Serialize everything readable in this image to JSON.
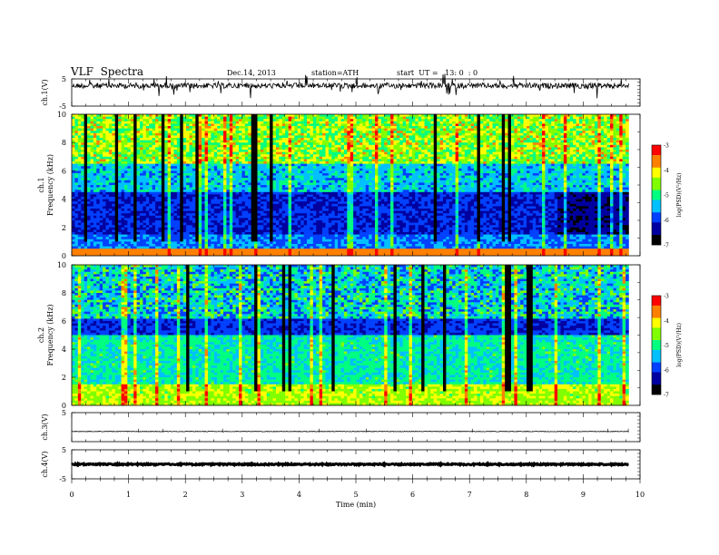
{
  "header": {
    "title": "VLF  Spectra",
    "date": "Dec.14, 2013",
    "station": "station=ATH",
    "start": "start  UT =   13: 0  : 0"
  },
  "colors": {
    "colormap": [
      "#000000",
      "#0000a0",
      "#0040ff",
      "#00c0ff",
      "#00ff80",
      "#80ff00",
      "#ffff00",
      "#ff8000",
      "#ff0000",
      "#ffffff"
    ]
  },
  "chart_data": [
    {
      "type": "line",
      "panel": "ch1",
      "ylabel": "ch.1(V)",
      "ylim": [
        -5,
        5
      ],
      "yticks": [
        "5",
        "-5"
      ],
      "xlim": [
        0,
        10
      ],
      "baseline_value": 2.5
    },
    {
      "type": "heatmap",
      "panel": "spec1",
      "ylabel_outer": "ch.1",
      "ylabel": "Frequency  (kHz)",
      "ylim": [
        0,
        10
      ],
      "yticks": [
        "0",
        "2",
        "4",
        "6",
        "8",
        "10"
      ],
      "xlim": [
        0,
        10
      ],
      "data_xmax": 9.8,
      "colorbar": {
        "label": "log(PSD)(V²/Hz)",
        "range": [
          -7,
          -3
        ],
        "ticks": [
          "-3",
          "-4",
          "-5",
          "-6",
          "-7"
        ]
      }
    },
    {
      "type": "heatmap",
      "panel": "spec2",
      "ylabel_outer": "ch.2",
      "ylabel": "Frequency  (kHz)",
      "ylim": [
        0,
        10
      ],
      "yticks": [
        "0",
        "2",
        "4",
        "6",
        "8",
        "10"
      ],
      "xlim": [
        0,
        10
      ],
      "data_xmax": 9.8,
      "colorbar": {
        "label": "log(PSD)(V²/Hz)",
        "range": [
          -7,
          -3
        ],
        "ticks": [
          "-3",
          "-4",
          "-5",
          "-6",
          "-7"
        ]
      }
    },
    {
      "type": "line",
      "panel": "ch3",
      "ylabel": "ch.3(V)",
      "ylim": [
        -5,
        5
      ],
      "yticks": [
        "5"
      ],
      "xlim": [
        0,
        10
      ],
      "baseline_value": -1.5
    },
    {
      "type": "line",
      "panel": "ch4",
      "ylabel": "ch.4(V)",
      "ylim": [
        -5,
        5
      ],
      "yticks": [
        "5",
        "-5"
      ],
      "xlim": [
        0,
        10
      ],
      "baseline_value": 0
    },
    {
      "type": "axis",
      "xlabel": "Time  (min)",
      "xticks": [
        "0",
        "1",
        "2",
        "3",
        "4",
        "5",
        "6",
        "7",
        "8",
        "9",
        "10"
      ]
    }
  ]
}
